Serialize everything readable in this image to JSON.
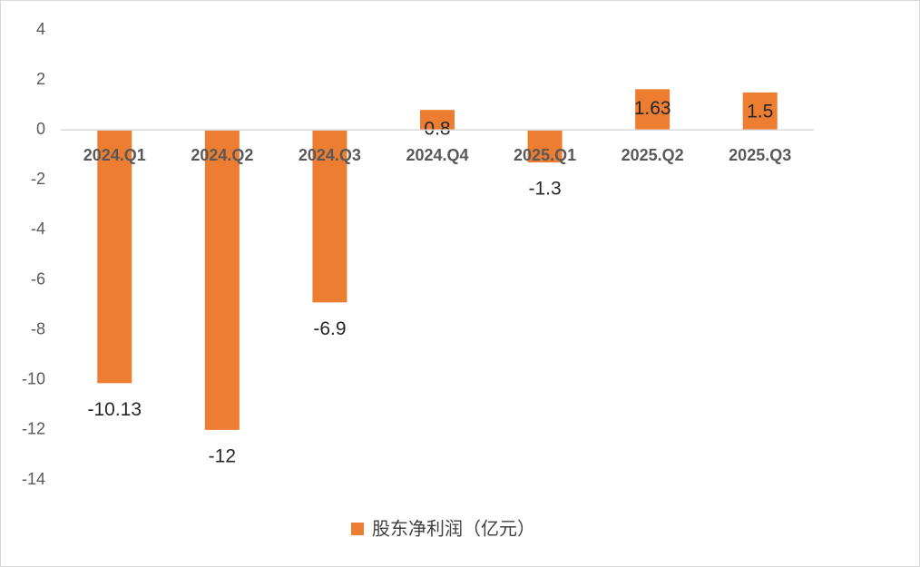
{
  "chart_data": {
    "type": "bar",
    "categories": [
      "2024.Q1",
      "2024.Q2",
      "2024.Q3",
      "2024.Q4",
      "2025.Q1",
      "2025.Q2",
      "2025.Q3"
    ],
    "series": [
      {
        "name": "股东净利润（亿元）",
        "color": "#ed7d31",
        "values": [
          -10.13,
          -12,
          -6.9,
          0.8,
          -1.3,
          1.63,
          1.5
        ]
      }
    ],
    "ylim": [
      -14,
      4
    ],
    "yticks": [
      -14,
      -12,
      -10,
      -8,
      -6,
      -4,
      -2,
      0,
      2,
      4
    ],
    "legend": "bottom"
  }
}
